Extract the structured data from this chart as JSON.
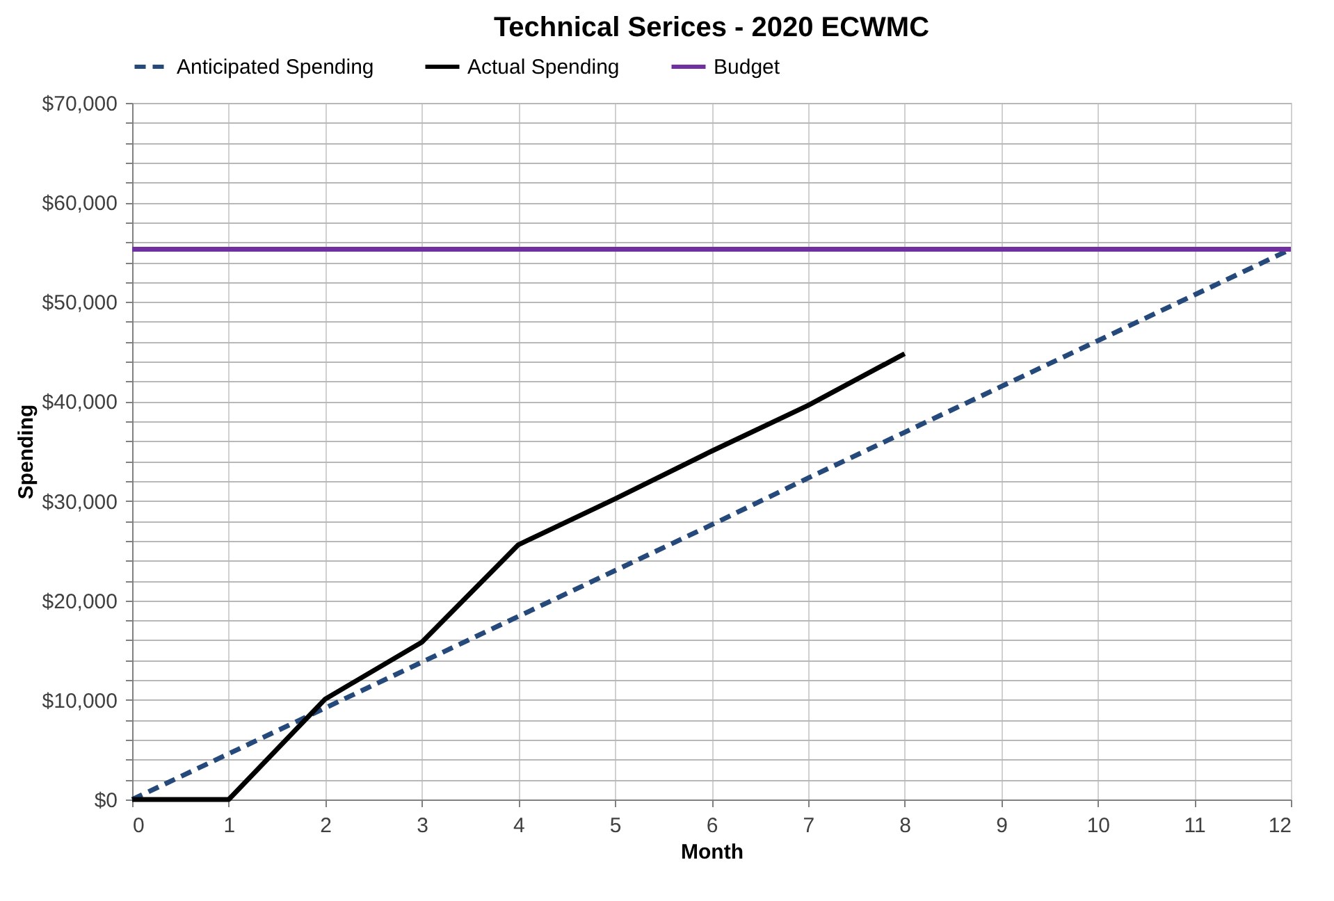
{
  "chart_data": {
    "type": "line",
    "title": "Technical Serices - 2020 ECWMC",
    "xlabel": "Month",
    "ylabel": "Spending",
    "x": [
      0,
      1,
      2,
      3,
      4,
      5,
      6,
      7,
      8,
      9,
      10,
      11,
      12
    ],
    "series": [
      {
        "name": "Anticipated Spending",
        "color": "#24497a",
        "line_style": "dashed",
        "values": [
          0,
          4600,
          9200,
          13800,
          18400,
          23000,
          27600,
          32300,
          36900,
          41500,
          46100,
          50700,
          55300
        ]
      },
      {
        "name": "Actual Spending",
        "color": "#000000",
        "line_style": "solid",
        "values": [
          0,
          0,
          10100,
          15800,
          25600,
          30200,
          35000,
          39600,
          44800,
          null,
          null,
          null,
          null
        ]
      },
      {
        "name": "Budget",
        "color": "#7030a0",
        "line_style": "solid",
        "values": [
          55300,
          55300,
          55300,
          55300,
          55300,
          55300,
          55300,
          55300,
          55300,
          55300,
          55300,
          55300,
          55300
        ]
      }
    ],
    "xlim": [
      0,
      12
    ],
    "xticks": [
      0,
      1,
      2,
      3,
      4,
      5,
      6,
      7,
      8,
      9,
      10,
      11,
      12
    ],
    "ylim": [
      0,
      70000
    ],
    "yticks": [
      {
        "value": 0,
        "label": "$0"
      },
      {
        "value": 2000,
        "label": null
      },
      {
        "value": 4000,
        "label": null
      },
      {
        "value": 6000,
        "label": null
      },
      {
        "value": 8000,
        "label": null
      },
      {
        "value": 10000,
        "label": "$10,000"
      },
      {
        "value": 12000,
        "label": null
      },
      {
        "value": 14000,
        "label": null
      },
      {
        "value": 16000,
        "label": null
      },
      {
        "value": 18000,
        "label": null
      },
      {
        "value": 20000,
        "label": "$20,000"
      },
      {
        "value": 22000,
        "label": null
      },
      {
        "value": 24000,
        "label": null
      },
      {
        "value": 26000,
        "label": null
      },
      {
        "value": 28000,
        "label": null
      },
      {
        "value": 30000,
        "label": "$30,000"
      },
      {
        "value": 32000,
        "label": null
      },
      {
        "value": 34000,
        "label": null
      },
      {
        "value": 36000,
        "label": null
      },
      {
        "value": 38000,
        "label": null
      },
      {
        "value": 40000,
        "label": "$40,000"
      },
      {
        "value": 42000,
        "label": null
      },
      {
        "value": 44000,
        "label": null
      },
      {
        "value": 46000,
        "label": null
      },
      {
        "value": 48000,
        "label": null
      },
      {
        "value": 50000,
        "label": "$50,000"
      },
      {
        "value": 52000,
        "label": null
      },
      {
        "value": 54000,
        "label": null
      },
      {
        "value": 56000,
        "label": null
      },
      {
        "value": 58000,
        "label": null
      },
      {
        "value": 60000,
        "label": "$60,000"
      },
      {
        "value": 62000,
        "label": null
      },
      {
        "value": 64000,
        "label": null
      },
      {
        "value": 66000,
        "label": null
      },
      {
        "value": 68000,
        "label": null
      },
      {
        "value": 70000,
        "label": "$70,000"
      }
    ],
    "grid": true,
    "legend": "top",
    "marker": "none"
  }
}
